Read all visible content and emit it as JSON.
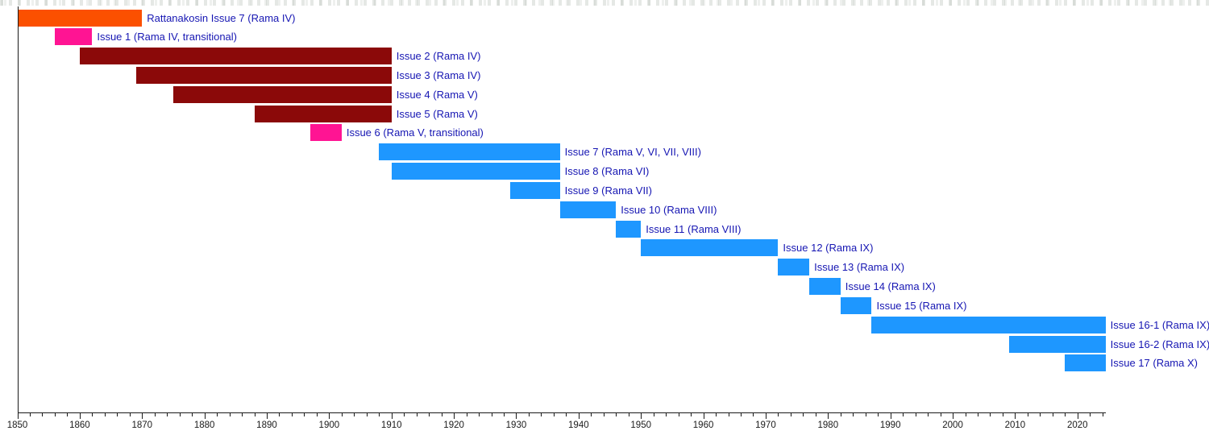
{
  "chart_data": {
    "type": "bar",
    "variant": "horizontal-range-timeline (gantt-style issue timeline)",
    "title": "",
    "xlabel": "",
    "ylabel": "",
    "grid": false,
    "legend": false,
    "axis": {
      "unit": "year",
      "min": 1850,
      "max": 2024.5,
      "major_tick_step": 10,
      "minor_tick_step": 2,
      "tick_labels": [
        "1850",
        "1860",
        "1870",
        "1880",
        "1890",
        "1900",
        "1910",
        "1920",
        "1930",
        "1940",
        "1950",
        "1960",
        "1970",
        "1980",
        "1990",
        "2000",
        "2010",
        "2020"
      ]
    },
    "colors": {
      "orange": "#FB5000",
      "magenta": "#FF1493",
      "dark_red": "#8B0909",
      "blue": "#1E97FF",
      "label_text": "#1616B3",
      "axis": "#1A1A1A"
    },
    "series": [
      {
        "label": "Rattanakosin Issue 7 (Rama IV)",
        "start": 1850,
        "end": 1870,
        "color": "orange"
      },
      {
        "label": "Issue 1 (Rama IV, transitional)",
        "start": 1856,
        "end": 1862,
        "color": "magenta"
      },
      {
        "label": "Issue 2 (Rama IV)",
        "start": 1860,
        "end": 1910,
        "color": "dark_red"
      },
      {
        "label": "Issue 3 (Rama IV)",
        "start": 1869,
        "end": 1910,
        "color": "dark_red"
      },
      {
        "label": "Issue 4 (Rama V)",
        "start": 1875,
        "end": 1910,
        "color": "dark_red"
      },
      {
        "label": "Issue 5 (Rama V)",
        "start": 1888,
        "end": 1910,
        "color": "dark_red"
      },
      {
        "label": "Issue 6 (Rama V, transitional)",
        "start": 1897,
        "end": 1902,
        "color": "magenta"
      },
      {
        "label": "Issue 7 (Rama V, VI, VII, VIII)",
        "start": 1908,
        "end": 1937,
        "color": "blue"
      },
      {
        "label": "Issue 8 (Rama VI)",
        "start": 1910,
        "end": 1937,
        "color": "blue"
      },
      {
        "label": "Issue 9 (Rama VII)",
        "start": 1929,
        "end": 1937,
        "color": "blue"
      },
      {
        "label": "Issue 10 (Rama VIII)",
        "start": 1937,
        "end": 1946,
        "color": "blue"
      },
      {
        "label": "Issue 11 (Rama VIII)",
        "start": 1946,
        "end": 1950,
        "color": "blue"
      },
      {
        "label": "Issue 12 (Rama IX)",
        "start": 1950,
        "end": 1972,
        "color": "blue"
      },
      {
        "label": "Issue 13 (Rama IX)",
        "start": 1972,
        "end": 1977,
        "color": "blue"
      },
      {
        "label": "Issue 14 (Rama IX)",
        "start": 1977,
        "end": 1982,
        "color": "blue"
      },
      {
        "label": "Issue 15 (Rama IX)",
        "start": 1982,
        "end": 1987,
        "color": "blue"
      },
      {
        "label": "Issue 16-1 (Rama IX)",
        "start": 1987,
        "end": 2024.5,
        "color": "blue"
      },
      {
        "label": "Issue 16-2 (Rama IX)",
        "start": 2009,
        "end": 2024.5,
        "color": "blue"
      },
      {
        "label": "Issue 17 (Rama X)",
        "start": 2018,
        "end": 2024.5,
        "color": "blue"
      }
    ]
  }
}
